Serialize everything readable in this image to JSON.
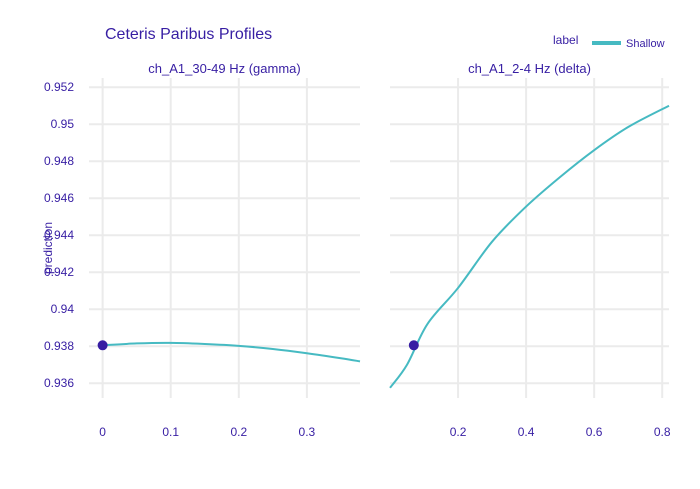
{
  "chart_data": {
    "type": "line",
    "title": "Ceteris Paribus Profiles",
    "ylabel": "prediction",
    "ylim": [
      0.9352,
      0.9525
    ],
    "yticks": [
      0.936,
      0.938,
      0.94,
      0.942,
      0.944,
      0.946,
      0.948,
      0.95,
      0.952
    ],
    "ytick_labels": [
      "0.936",
      "0.938",
      "0.94",
      "0.942",
      "0.944",
      "0.946",
      "0.948",
      "0.95",
      "0.952"
    ],
    "legend": {
      "title": "label",
      "items": [
        {
          "name": "Shallow",
          "color": "#46bac2"
        }
      ],
      "position": "top-right"
    },
    "line_color": "#46bac2",
    "point_color": "#371ea3",
    "grid": true,
    "panels": [
      {
        "subtitle": "ch_A1_30-49 Hz (gamma)",
        "xlim": [
          -0.02,
          0.378
        ],
        "xticks": [
          0,
          0.1,
          0.2,
          0.3
        ],
        "xtick_labels": [
          "0",
          "0.1",
          "0.2",
          "0.3"
        ],
        "series": [
          {
            "name": "Shallow",
            "x": [
              0,
              0.05,
              0.1,
              0.15,
              0.2,
              0.25,
              0.3,
              0.35,
              0.378
            ],
            "y": [
              0.93805,
              0.93815,
              0.93818,
              0.93812,
              0.93802,
              0.93785,
              0.93762,
              0.93735,
              0.93718
            ]
          }
        ],
        "observation": {
          "x": 0.0,
          "y": 0.93805
        }
      },
      {
        "subtitle": "ch_A1_2-4 Hz (delta)",
        "xlim": [
          0.0,
          0.82
        ],
        "xticks": [
          0.2,
          0.4,
          0.6,
          0.8
        ],
        "xtick_labels": [
          "0.2",
          "0.4",
          "0.6",
          "0.8"
        ],
        "series": [
          {
            "name": "Shallow",
            "x": [
              0.0,
              0.05,
              0.11,
              0.2,
              0.3,
              0.4,
              0.5,
              0.6,
              0.7,
              0.82
            ],
            "y": [
              0.93575,
              0.937,
              0.9392,
              0.94115,
              0.94365,
              0.94555,
              0.94715,
              0.9486,
              0.94985,
              0.951
            ]
          }
        ],
        "observation": {
          "x": 0.07,
          "y": 0.93805
        }
      }
    ]
  }
}
